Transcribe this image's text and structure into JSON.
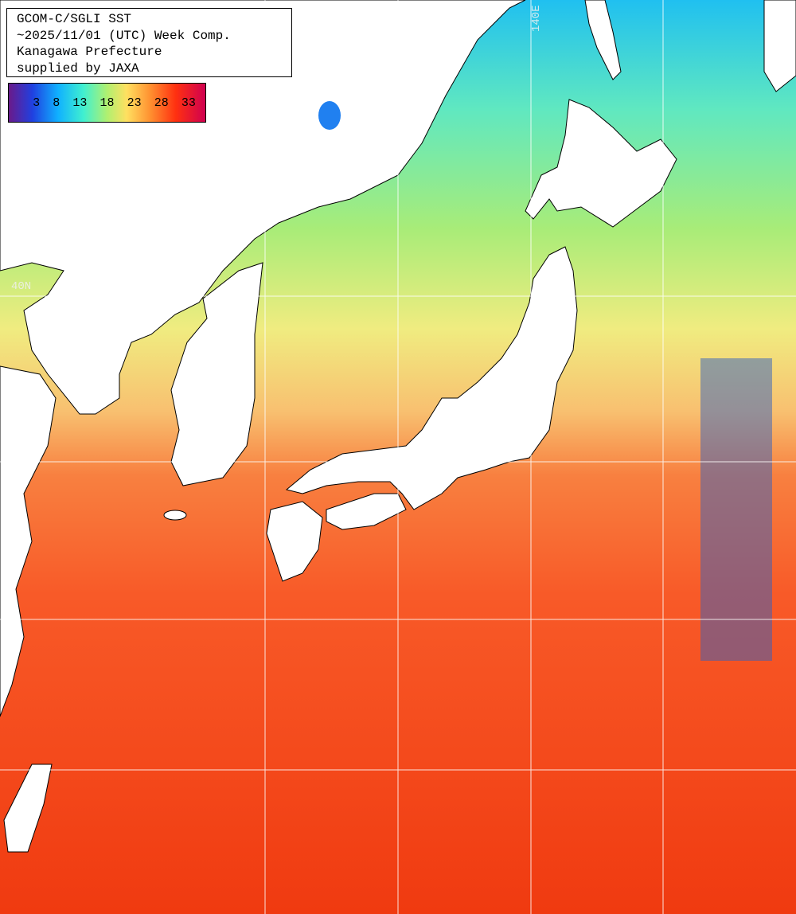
{
  "header": {
    "lines": [
      "GCOM-C/SGLI SST",
      "~2025/11/01 (UTC) Week Comp.",
      "Kanagawa Prefecture",
      "supplied by JAXA"
    ]
  },
  "colorbar": {
    "labels": [
      "3",
      "8",
      "13",
      "18",
      "23",
      "28",
      "33"
    ]
  },
  "grid_labels": {
    "latitude": "40N",
    "longitude": "140E"
  }
}
